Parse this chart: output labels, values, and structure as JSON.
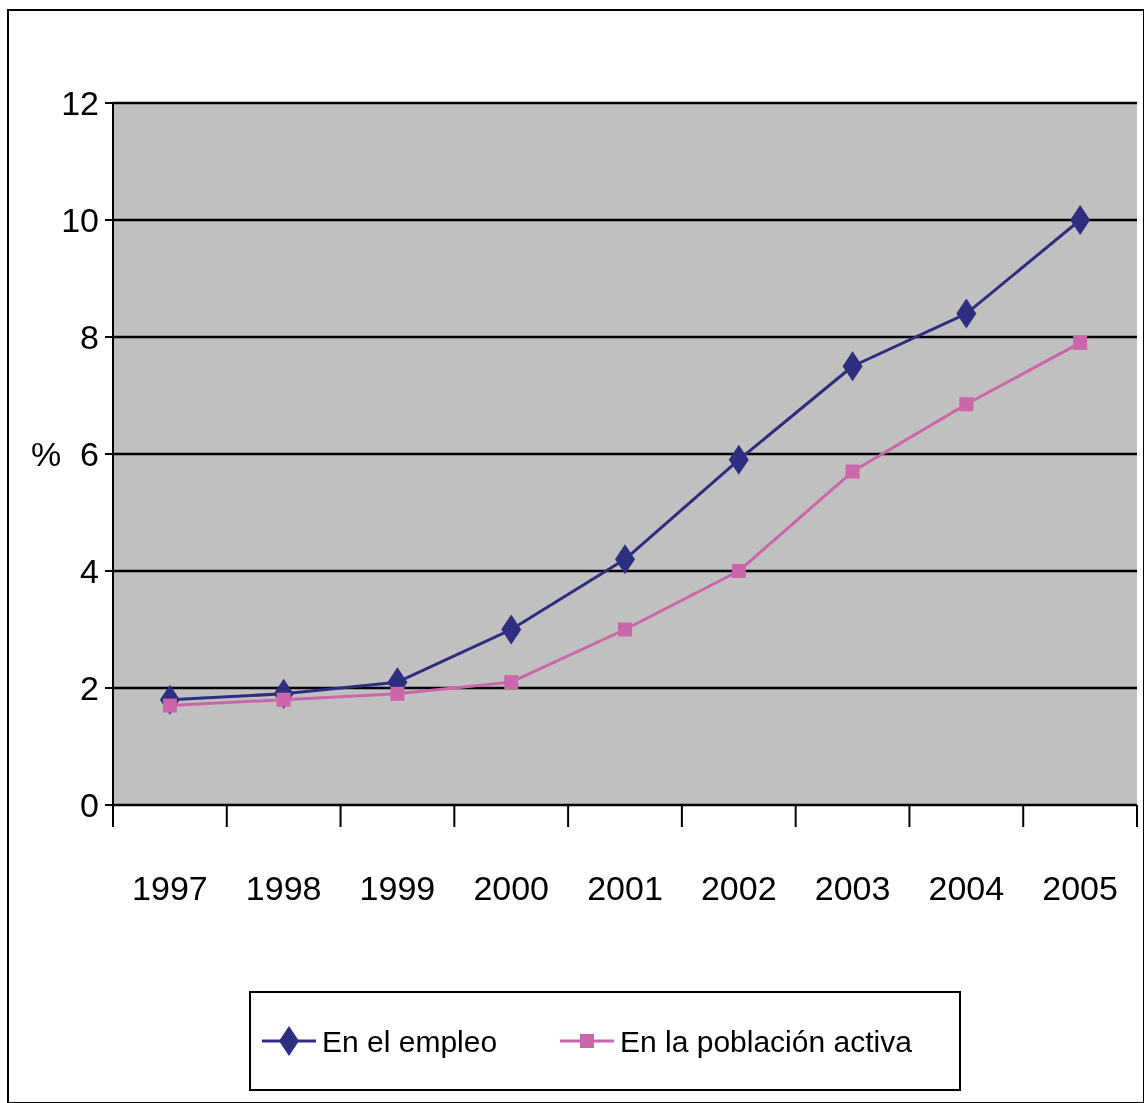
{
  "chart_data": {
    "type": "line",
    "ylabel": "%",
    "categories": [
      "1997",
      "1998",
      "1999",
      "2000",
      "2001",
      "2002",
      "2003",
      "2004",
      "2005"
    ],
    "series": [
      {
        "name": "En el empleo",
        "color": "#2e2e80",
        "marker": "diamond",
        "values": [
          1.8,
          1.9,
          2.1,
          3.0,
          4.2,
          5.9,
          7.5,
          8.4,
          10.0
        ]
      },
      {
        "name": "En la población activa",
        "color": "#cc66aa",
        "marker": "square",
        "values": [
          1.7,
          1.8,
          1.9,
          2.1,
          3.0,
          4.0,
          5.7,
          6.85,
          7.9
        ]
      }
    ],
    "ylim": [
      0,
      12
    ],
    "yticks": [
      0,
      2,
      4,
      6,
      8,
      10,
      12
    ],
    "grid": "y",
    "legend": "bottom",
    "line_style": "solid"
  }
}
